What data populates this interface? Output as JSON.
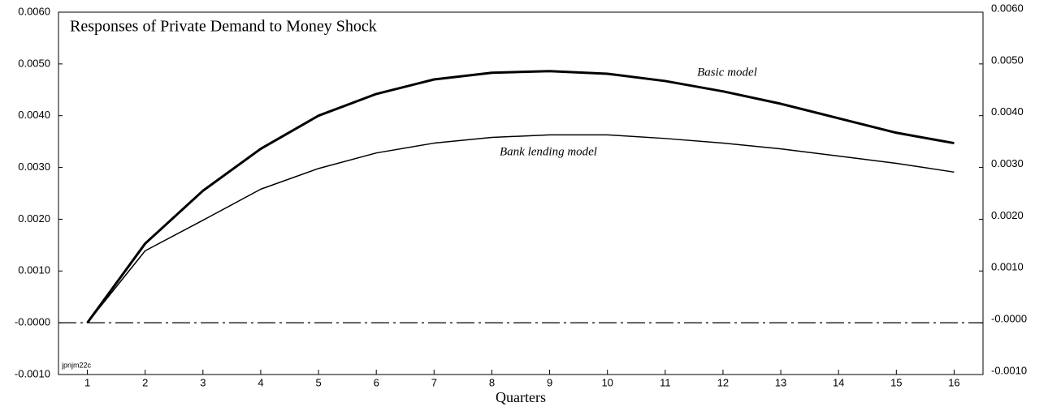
{
  "chart_data": {
    "type": "line",
    "title": "Responses of Private Demand to Money Shock",
    "x_label": "Quarters",
    "categories": [
      "1",
      "2",
      "3",
      "4",
      "5",
      "6",
      "7",
      "8",
      "9",
      "10",
      "11",
      "12",
      "13",
      "14",
      "15",
      "16"
    ],
    "series": [
      {
        "name": "Basic model",
        "color": "#000000",
        "width": 3,
        "values": [
          0,
          0.00153,
          0.00255,
          0.00336,
          0.004,
          0.00442,
          0.0047,
          0.00483,
          0.00486,
          0.00481,
          0.00467,
          0.00447,
          0.00423,
          0.00395,
          0.00367,
          0.00347
        ]
      },
      {
        "name": "Bank lending model",
        "color": "#000000",
        "width": 1.5,
        "values": [
          0,
          0.00139,
          0.00198,
          0.00258,
          0.00298,
          0.00328,
          0.00347,
          0.00358,
          0.00363,
          0.00363,
          0.00356,
          0.00347,
          0.00336,
          0.00322,
          0.00308,
          0.00291
        ]
      }
    ],
    "hline": 0,
    "note": "jpnjm22c",
    "ylim": [
      -0.001,
      0.006
    ],
    "yticks": [
      {
        "value": -0.001,
        "label": "-0.0010"
      },
      {
        "value": 0,
        "label": "-0.0000"
      },
      {
        "value": 0.001,
        "label": "0.0010"
      },
      {
        "value": 0.002,
        "label": "0.0020"
      },
      {
        "value": 0.003,
        "label": "0.0030"
      },
      {
        "value": 0.004,
        "label": "0.0040"
      },
      {
        "value": 0.005,
        "label": "0.0050"
      },
      {
        "value": 0.006,
        "label": "0.0060"
      }
    ],
    "y2lim": [
      -0.001,
      0.006
    ],
    "y2ticks": [
      {
        "value": -0.001,
        "label": "-0.0010"
      },
      {
        "value": 0,
        "label": "-0.0000"
      },
      {
        "value": 0.001,
        "label": "0.0010"
      },
      {
        "value": 0.002,
        "label": "0.0020"
      },
      {
        "value": 0.003,
        "label": "0.0030"
      },
      {
        "value": 0.004,
        "label": "0.0040"
      },
      {
        "value": 0.005,
        "label": "0.0050"
      },
      {
        "value": 0.006,
        "label": "0.0060"
      }
    ],
    "grid": false
  }
}
